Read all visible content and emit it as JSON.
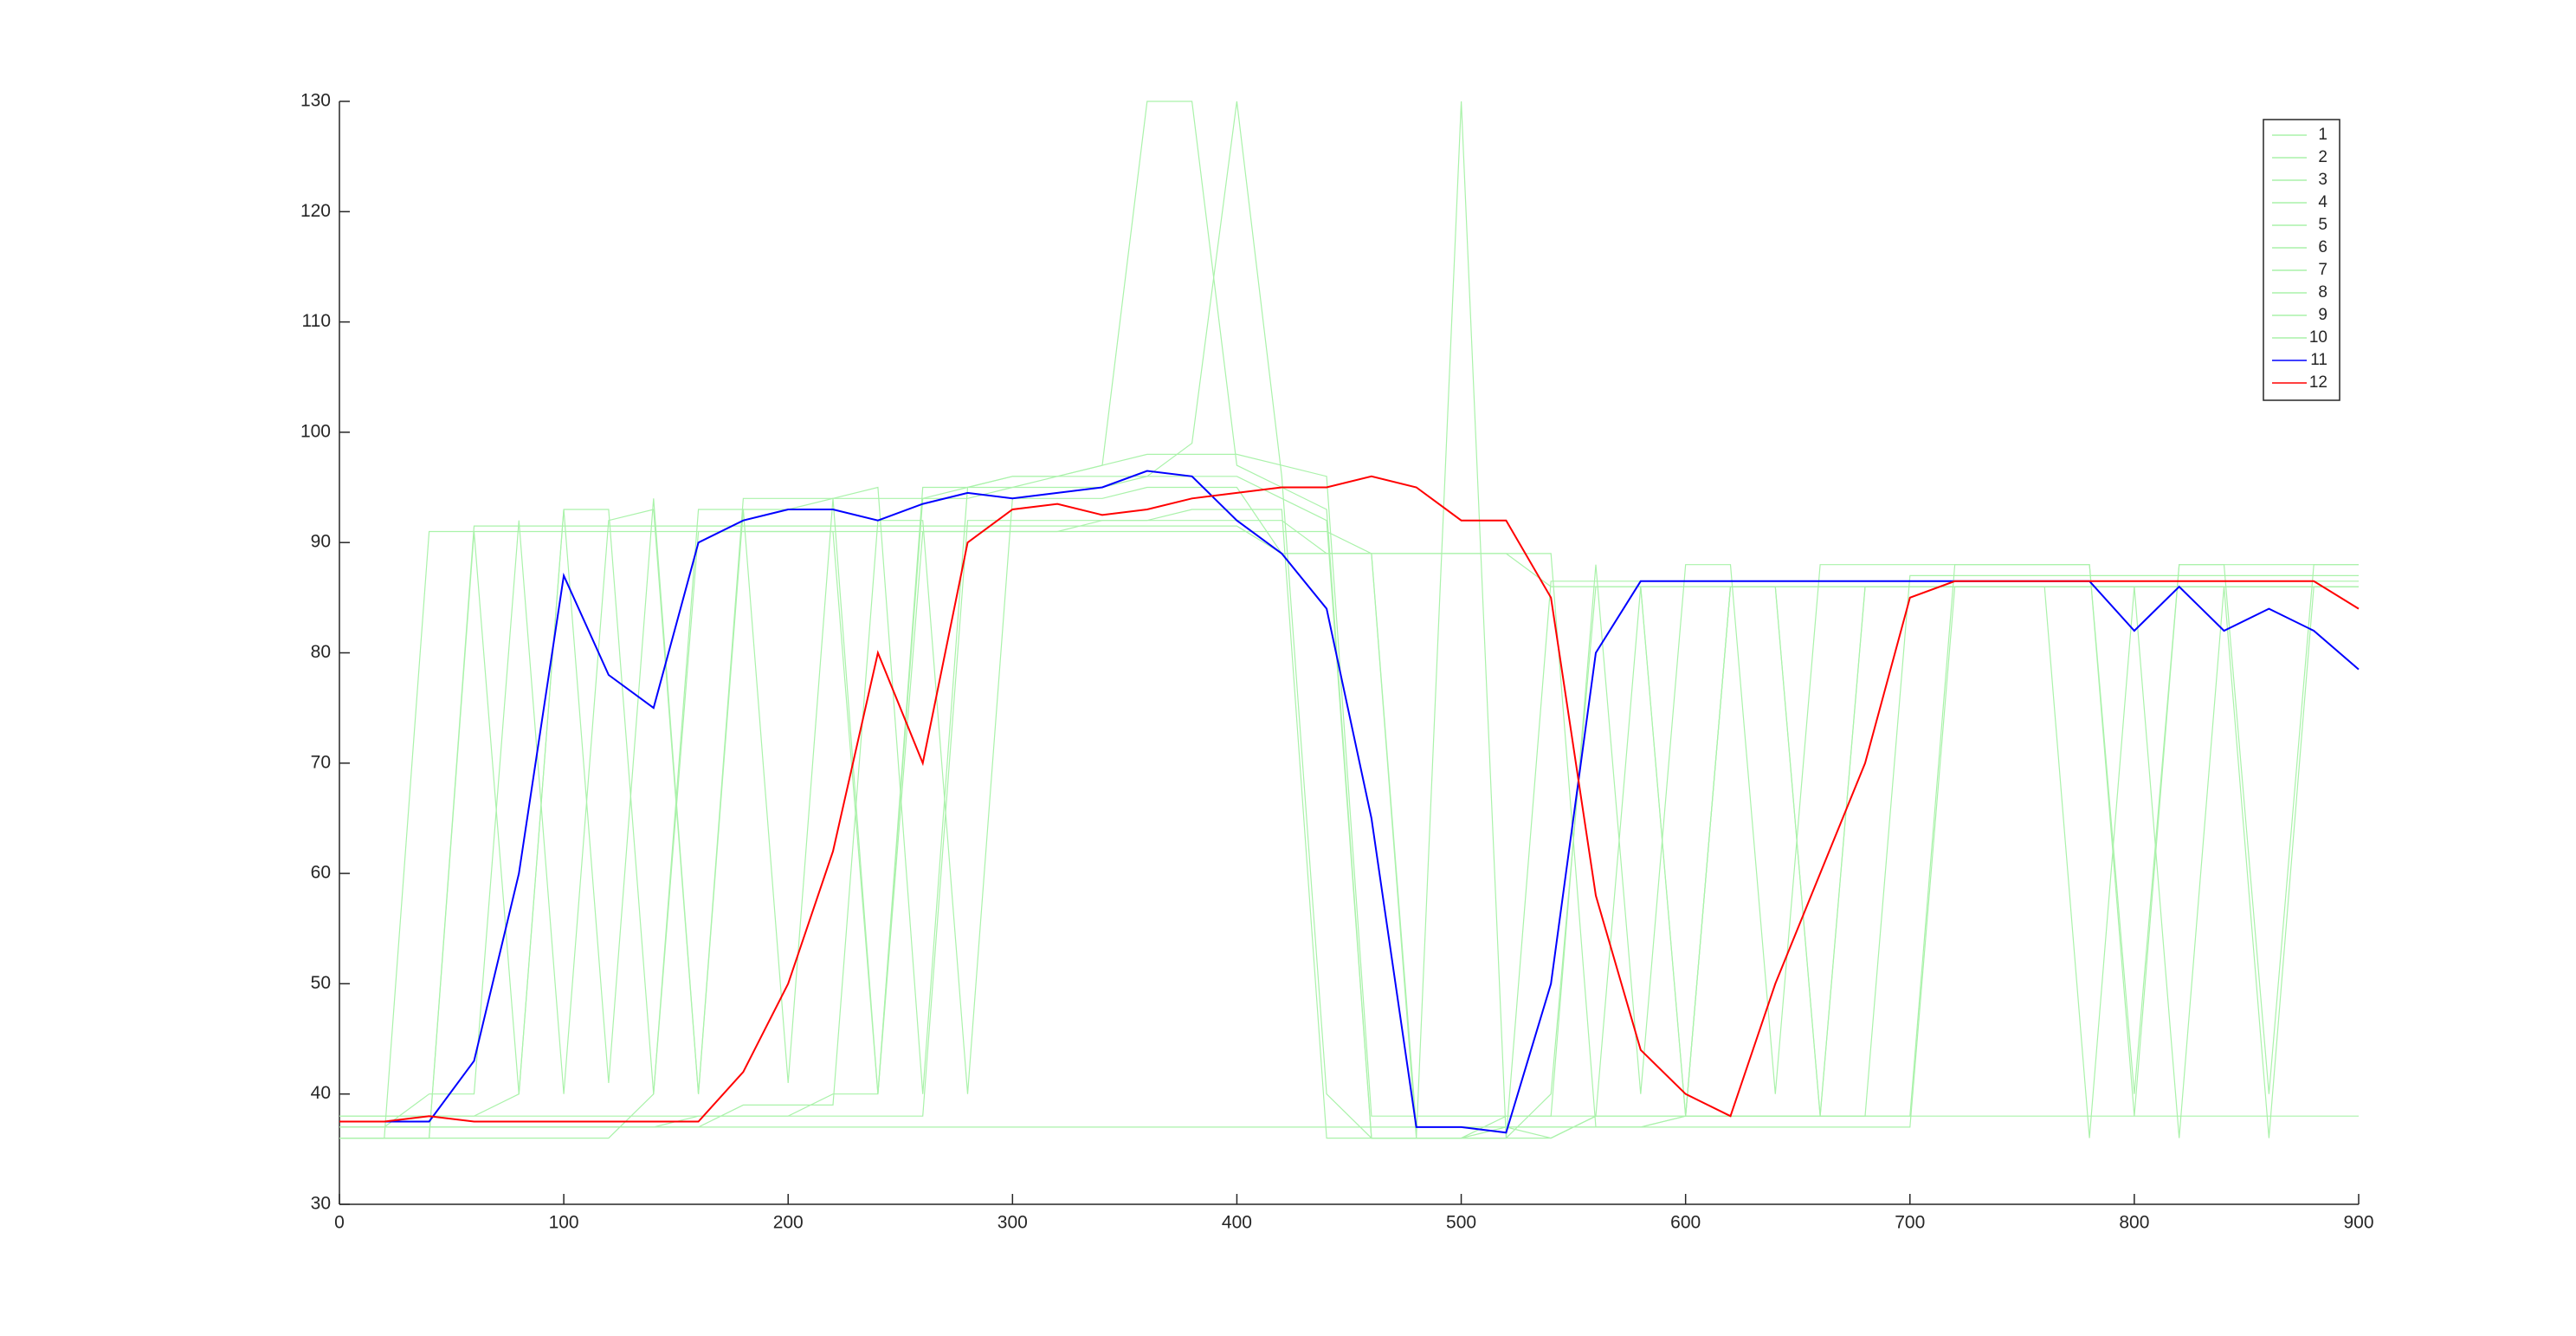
{
  "chart_data": {
    "type": "line",
    "x": [
      0,
      20,
      40,
      60,
      80,
      100,
      120,
      140,
      160,
      180,
      200,
      220,
      240,
      260,
      280,
      300,
      320,
      340,
      360,
      380,
      400,
      420,
      440,
      460,
      480,
      500,
      520,
      540,
      560,
      580,
      600,
      620,
      640,
      660,
      680,
      700,
      720,
      740,
      760,
      780,
      800,
      820,
      840,
      860,
      880,
      900
    ],
    "series": [
      {
        "name": "1",
        "color": "#aaf2aa",
        "values": [
          36,
          36,
          36,
          91.5,
          91.5,
          91.5,
          91.5,
          91.5,
          91.5,
          91.5,
          91.5,
          91.5,
          91.5,
          91.5,
          91.5,
          91.5,
          91.5,
          91.5,
          91.5,
          91.5,
          91.5,
          89,
          89,
          89,
          36,
          36,
          36,
          86.5,
          86.5,
          86.5,
          86.5,
          86.5,
          86.5,
          86.5,
          86.5,
          86.5,
          86.5,
          86.5,
          86.5,
          86.5,
          86.5,
          86.5,
          86.5,
          86.5,
          86.5,
          86.5
        ]
      },
      {
        "name": "2",
        "color": "#aaf2aa",
        "values": [
          37,
          37,
          40,
          40,
          92,
          40,
          92,
          93,
          40,
          93,
          93,
          94,
          40,
          94,
          94,
          95,
          95,
          95,
          96,
          99,
          130,
          96,
          40,
          36,
          36,
          36,
          38,
          38,
          88,
          40,
          88,
          88,
          40,
          88,
          88,
          88,
          88,
          88,
          88,
          88,
          40,
          88,
          88,
          40,
          88,
          88
        ]
      },
      {
        "name": "3",
        "color": "#aaf2aa",
        "values": [
          38,
          38,
          38,
          38,
          40,
          93,
          93,
          40,
          93,
          93,
          41,
          94,
          94,
          94,
          95,
          95,
          96,
          96,
          96,
          96,
          96,
          94,
          92,
          36,
          36,
          36,
          36,
          40,
          86,
          86,
          38,
          86,
          86,
          38,
          86,
          86,
          86,
          86,
          86,
          86,
          86,
          36,
          86,
          86,
          86,
          86
        ]
      },
      {
        "name": "4",
        "color": "#aaf2aa",
        "values": [
          36,
          36,
          36,
          36,
          36,
          36,
          36,
          40,
          91,
          91,
          91,
          91,
          40,
          91,
          91,
          91,
          91,
          92,
          92,
          93,
          93,
          93,
          36,
          36,
          36,
          36,
          37,
          36,
          38,
          38,
          38,
          86,
          86,
          86,
          86,
          86,
          86,
          86,
          86,
          86,
          86,
          86,
          86,
          86,
          86,
          86
        ]
      },
      {
        "name": "5",
        "color": "#aaf2aa",
        "values": [
          37,
          37,
          37,
          37,
          37,
          37,
          37,
          37,
          38,
          38,
          38,
          40,
          40,
          95,
          95,
          96,
          96,
          97,
          98,
          98,
          98,
          97,
          96,
          38,
          38,
          38,
          38,
          38,
          38,
          38,
          38,
          38,
          38,
          38,
          38,
          87,
          87,
          87,
          87,
          87,
          87,
          87,
          87,
          87,
          87,
          87
        ]
      },
      {
        "name": "6",
        "color": "#aaf2aa",
        "values": [
          36,
          36,
          36,
          91,
          40,
          93,
          41,
          94,
          40,
          94,
          94,
          94,
          95,
          40,
          95,
          96,
          96,
          97,
          130,
          130,
          97,
          95,
          93,
          36,
          36,
          130,
          36,
          36,
          38,
          86,
          38,
          86,
          86,
          38,
          86,
          86,
          86,
          86,
          86,
          36,
          86,
          86,
          86,
          36,
          86,
          86
        ]
      },
      {
        "name": "7",
        "color": "#aaf2aa",
        "values": [
          37,
          37,
          37,
          37,
          37,
          37,
          37,
          37,
          37,
          39,
          39,
          39,
          92,
          92,
          40,
          94,
          94,
          94,
          95,
          95,
          95,
          89,
          89,
          89,
          37,
          37,
          37,
          37,
          37,
          37,
          38,
          38,
          38,
          38,
          38,
          38,
          88,
          88,
          88,
          88,
          38,
          88,
          88,
          88,
          88,
          88
        ]
      },
      {
        "name": "8",
        "color": "#aaf2aa",
        "values": [
          38,
          38,
          38,
          38,
          38,
          38,
          38,
          38,
          38,
          38,
          38,
          38,
          38,
          38,
          92,
          92,
          92,
          92,
          92,
          92,
          92,
          92,
          89,
          89,
          89,
          89,
          89,
          89,
          37,
          37,
          37,
          37,
          37,
          37,
          37,
          37,
          86,
          86,
          86,
          86,
          86,
          86,
          86,
          86,
          86,
          86
        ]
      },
      {
        "name": "9",
        "color": "#aaf2aa",
        "values": [
          36,
          36,
          91,
          91,
          91,
          91,
          91,
          91,
          91,
          91,
          91,
          91,
          91,
          91,
          91,
          91,
          91,
          91,
          91,
          91,
          91,
          91,
          91,
          89,
          89,
          89,
          89,
          86,
          86,
          86,
          86,
          86,
          86,
          86,
          86,
          86,
          86,
          86,
          86,
          86,
          86,
          86,
          86,
          86,
          86,
          86
        ]
      },
      {
        "name": "10",
        "color": "#aaf2aa",
        "values": [
          37,
          37,
          37,
          37,
          37,
          37,
          37,
          37,
          37,
          37,
          37,
          37,
          37,
          37,
          37,
          37,
          37,
          37,
          37,
          37,
          37,
          37,
          37,
          37,
          37,
          37,
          37,
          37,
          37,
          37,
          38,
          38,
          38,
          38,
          38,
          38,
          38,
          38,
          38,
          38,
          38,
          38,
          38,
          38,
          38,
          38
        ]
      },
      {
        "name": "11",
        "color": "#0000ff",
        "values": [
          37.5,
          37.5,
          37.5,
          43,
          60,
          87,
          78,
          75,
          90,
          92,
          93,
          93,
          92,
          93.5,
          94.5,
          94,
          94.5,
          95,
          96.5,
          96,
          92,
          89,
          84,
          65,
          37,
          37,
          36.5,
          50,
          80,
          86.5,
          86.5,
          86.5,
          86.5,
          86.5,
          86.5,
          86.5,
          86.5,
          86.5,
          86.5,
          86.5,
          82,
          86,
          82,
          84,
          82,
          78.5
        ]
      },
      {
        "name": "12",
        "color": "#ff0000",
        "values": [
          37.5,
          37.5,
          38,
          37.5,
          37.5,
          37.5,
          37.5,
          37.5,
          37.5,
          42,
          50,
          62,
          80,
          70,
          90,
          93,
          93.5,
          92.5,
          93,
          94,
          94.5,
          95,
          95,
          96,
          95,
          92,
          92,
          85,
          58,
          44,
          40,
          38,
          50,
          60,
          70,
          85,
          86.5,
          86.5,
          86.5,
          86.5,
          86.5,
          86.5,
          86.5,
          86.5,
          86.5,
          84
        ]
      }
    ],
    "xlim": [
      0,
      900
    ],
    "xticks": [
      0,
      100,
      200,
      300,
      400,
      500,
      600,
      700,
      800,
      900
    ],
    "ylim": [
      30,
      130
    ],
    "yticks": [
      30,
      40,
      50,
      60,
      70,
      80,
      90,
      100,
      110,
      120,
      130
    ],
    "grid": false,
    "legend": "northeast"
  }
}
